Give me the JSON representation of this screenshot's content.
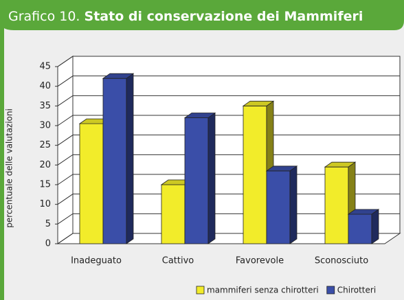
{
  "chart_data": {
    "type": "bar3d",
    "title_label": "Grafico 10.",
    "title": "Stato di conservazione dei Mammiferi",
    "ylabel": "percentuale delle valutazioni",
    "categories": [
      "Inadeguato",
      "Cattivo",
      "Favorevole",
      "Sconosciuto"
    ],
    "series": [
      {
        "name": "mammiferi senza chirotteri",
        "color": "#f2ec2a",
        "values": [
          30.5,
          15,
          35,
          19.5
        ]
      },
      {
        "name": "Chirotteri",
        "color": "#3a4ea8",
        "values": [
          42,
          32,
          18.5,
          7.5
        ]
      }
    ],
    "ylim": [
      0,
      45
    ],
    "yticks": [
      0,
      5,
      10,
      15,
      20,
      25,
      30,
      35,
      40,
      45
    ],
    "grid": true
  }
}
